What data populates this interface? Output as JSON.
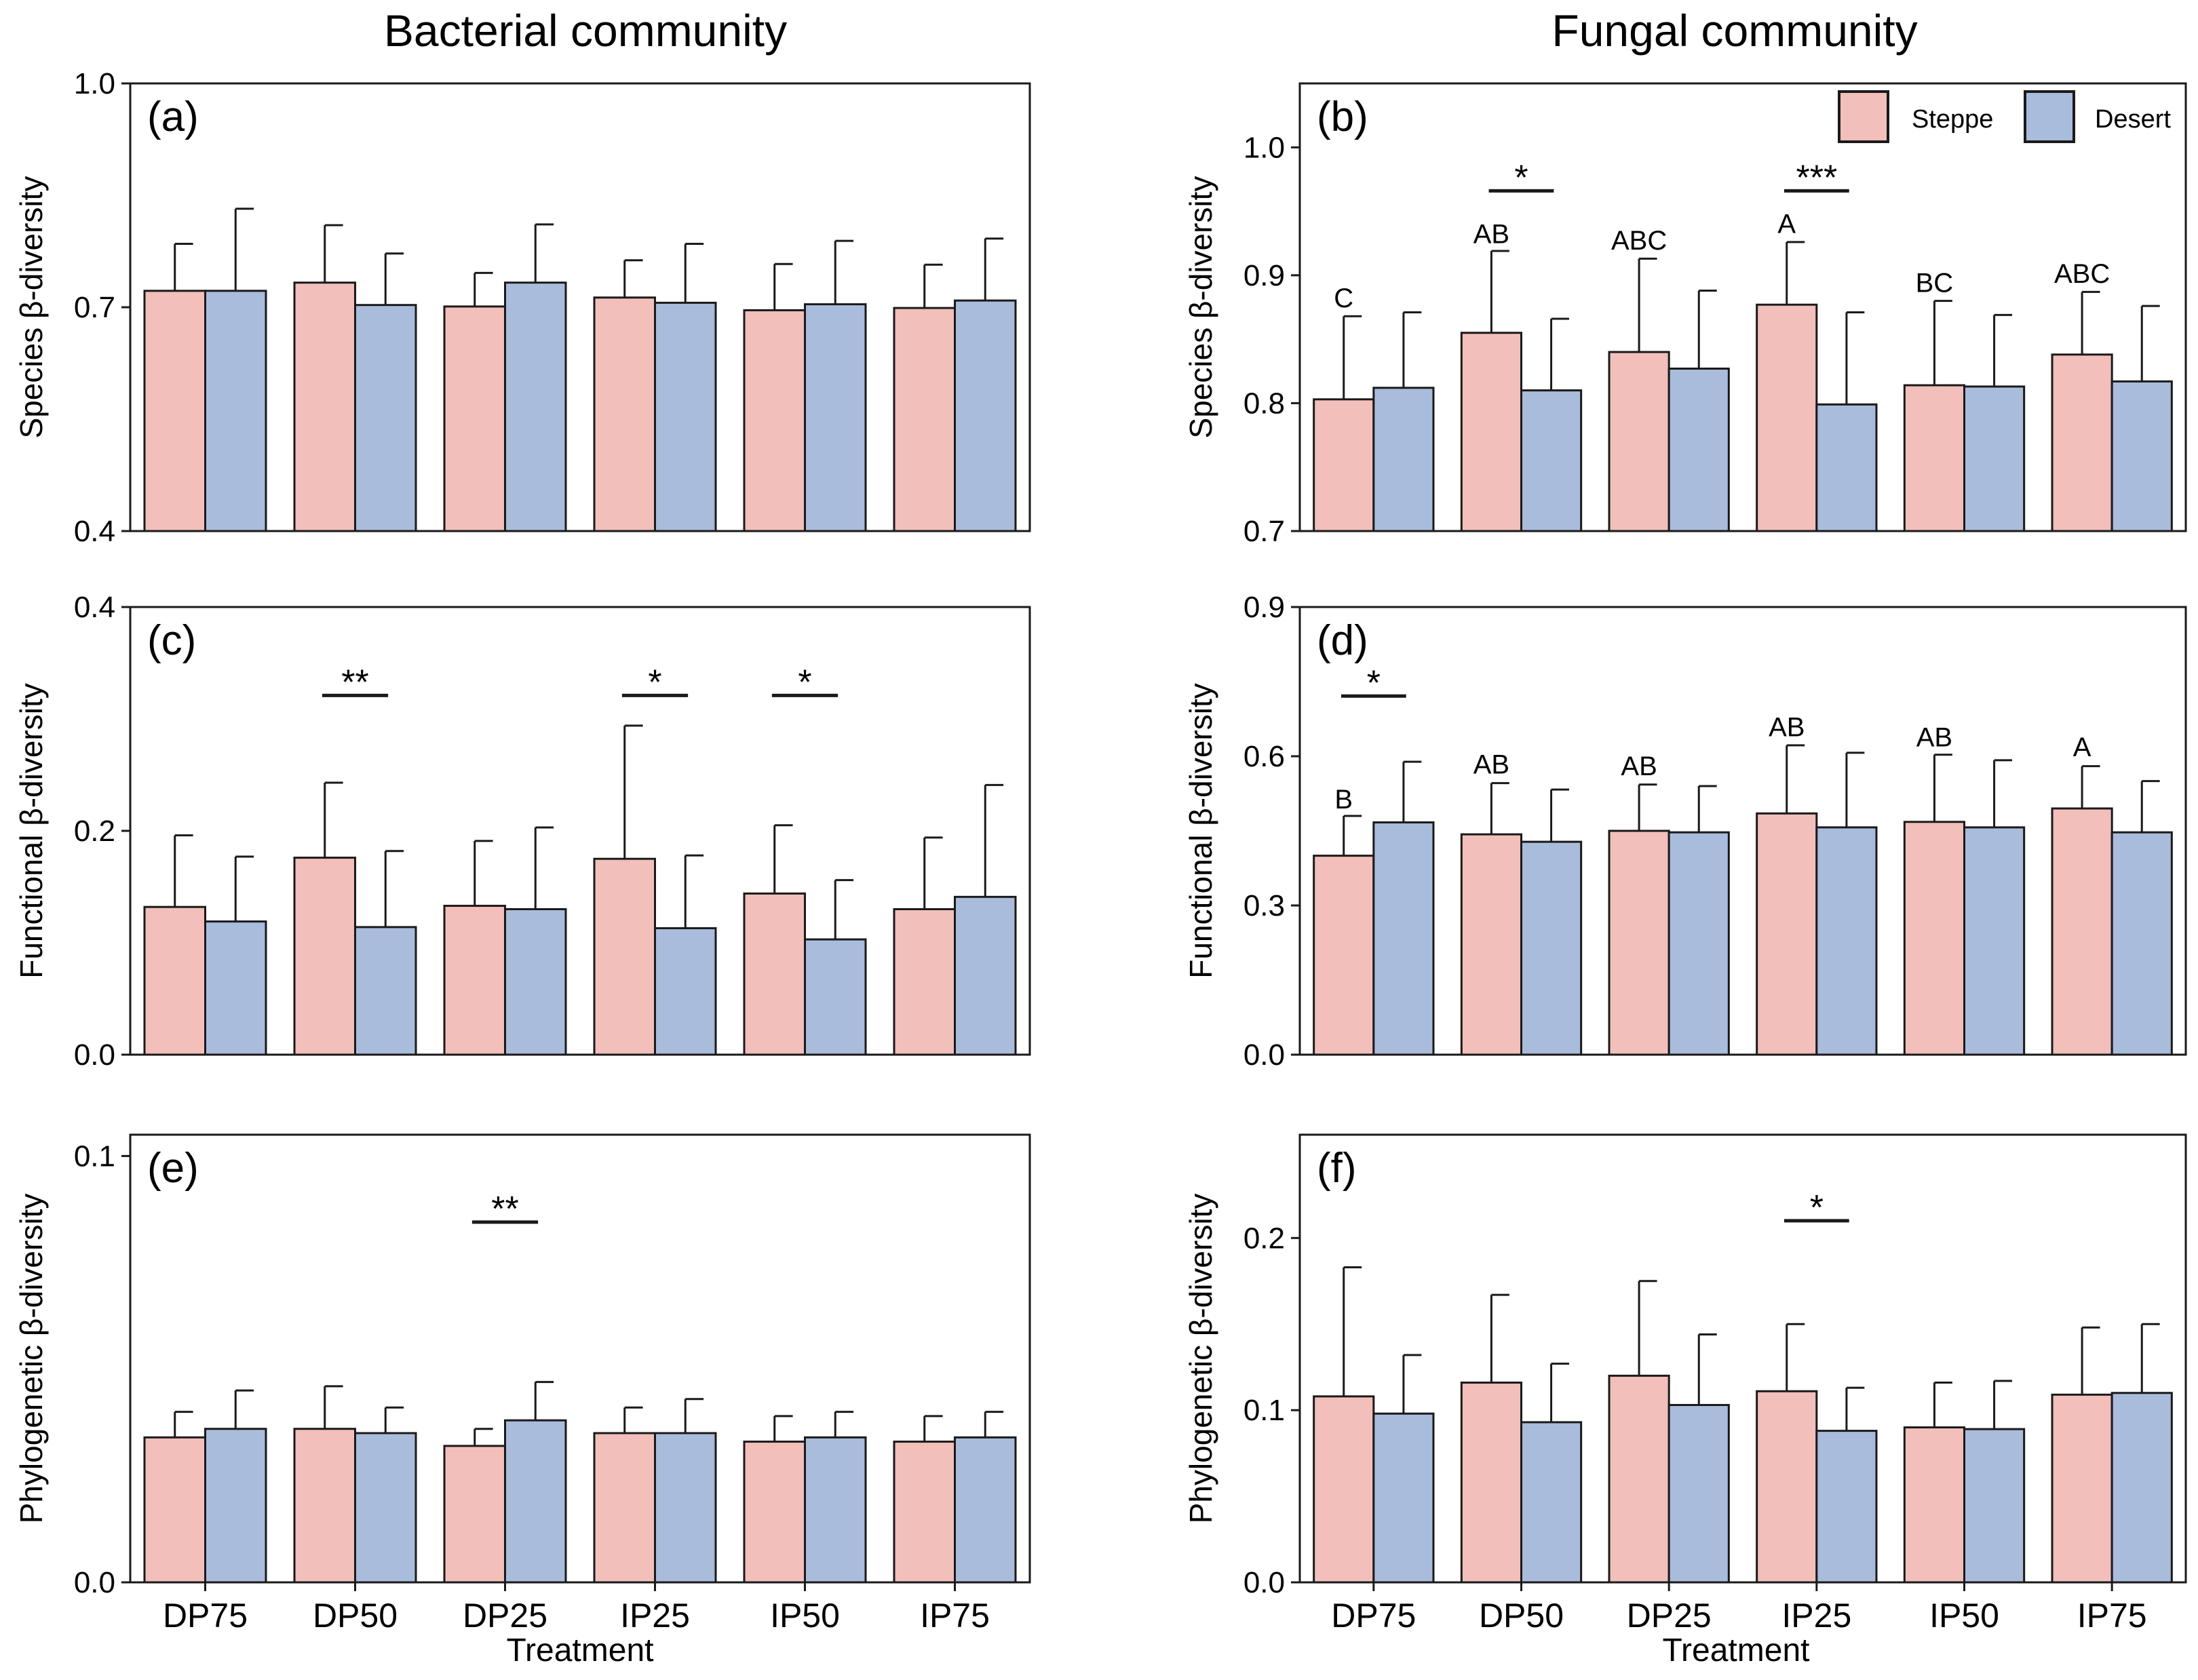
{
  "column_titles": [
    "Bacterial community",
    "Fungal community"
  ],
  "x_axis_title": "Treatment",
  "legend": {
    "entries": [
      {
        "name": "Steppe",
        "color": "#F2BFBB"
      },
      {
        "name": "Desert",
        "color": "#AABCDC"
      }
    ]
  },
  "chart_data": [
    {
      "id": "a",
      "panel_label": "(a)",
      "type": "bar",
      "community": "Bacterial",
      "ylabel": "Species β-diversity",
      "ylim": [
        0.4,
        1.0
      ],
      "yticks": [
        0.4,
        0.7,
        1.0
      ],
      "ytick_labels": [
        "0.4",
        "0.7",
        "1.0"
      ],
      "categories": [
        "DP75",
        "DP50",
        "DP25",
        "IP25",
        "IP50",
        "IP75"
      ],
      "show_xticks": false,
      "series": [
        {
          "name": "Steppe",
          "values": [
            0.722,
            0.733,
            0.701,
            0.713,
            0.696,
            0.699
          ],
          "error": [
            0.063,
            0.077,
            0.045,
            0.05,
            0.062,
            0.058
          ]
        },
        {
          "name": "Desert",
          "values": [
            0.722,
            0.703,
            0.733,
            0.706,
            0.704,
            0.709
          ],
          "error": [
            0.11,
            0.069,
            0.078,
            0.079,
            0.085,
            0.083
          ]
        }
      ],
      "significance": [],
      "letters": []
    },
    {
      "id": "b",
      "panel_label": "(b)",
      "type": "bar",
      "community": "Fungal",
      "ylabel": "Species β-diversity",
      "ylim": [
        0.7,
        1.05
      ],
      "yticks": [
        0.7,
        0.8,
        0.9,
        1.0
      ],
      "ytick_labels": [
        "0.7",
        "0.8",
        "0.9",
        "1.0"
      ],
      "categories": [
        "DP75",
        "DP50",
        "DP25",
        "IP25",
        "IP50",
        "IP75"
      ],
      "show_xticks": false,
      "show_legend": true,
      "series": [
        {
          "name": "Steppe",
          "values": [
            0.803,
            0.855,
            0.84,
            0.877,
            0.814,
            0.838
          ],
          "error": [
            0.065,
            0.064,
            0.073,
            0.049,
            0.066,
            0.049
          ]
        },
        {
          "name": "Desert",
          "values": [
            0.812,
            0.81,
            0.827,
            0.799,
            0.813,
            0.817
          ],
          "error": [
            0.059,
            0.056,
            0.061,
            0.072,
            0.056,
            0.059
          ]
        }
      ],
      "significance": [
        {
          "category_index": 1,
          "label": "*",
          "y": 0.966
        },
        {
          "category_index": 3,
          "label": "***",
          "y": 0.966
        }
      ],
      "letters": [
        {
          "category_index": 0,
          "label": "C",
          "y": 0.875
        },
        {
          "category_index": 1,
          "label": "AB",
          "y": 0.925
        },
        {
          "category_index": 2,
          "label": "ABC",
          "y": 0.92
        },
        {
          "category_index": 3,
          "label": "A",
          "y": 0.933
        },
        {
          "category_index": 4,
          "label": "BC",
          "y": 0.887
        },
        {
          "category_index": 5,
          "label": "ABC",
          "y": 0.894
        }
      ]
    },
    {
      "id": "c",
      "panel_label": "(c)",
      "type": "bar",
      "community": "Bacterial",
      "ylabel": "Functional β-diversity",
      "ylim": [
        0.0,
        0.4
      ],
      "yticks": [
        0.0,
        0.2,
        0.4
      ],
      "ytick_labels": [
        "0.0",
        "0.2",
        "0.4"
      ],
      "categories": [
        "DP75",
        "DP50",
        "DP25",
        "IP25",
        "IP50",
        "IP75"
      ],
      "show_xticks": false,
      "series": [
        {
          "name": "Steppe",
          "values": [
            0.132,
            0.176,
            0.133,
            0.175,
            0.144,
            0.13
          ],
          "error": [
            0.064,
            0.067,
            0.058,
            0.119,
            0.061,
            0.064
          ]
        },
        {
          "name": "Desert",
          "values": [
            0.119,
            0.114,
            0.13,
            0.113,
            0.103,
            0.141
          ],
          "error": [
            0.058,
            0.068,
            0.073,
            0.065,
            0.053,
            0.1
          ]
        }
      ],
      "significance": [
        {
          "category_index": 1,
          "label": "**",
          "y": 0.321
        },
        {
          "category_index": 3,
          "label": "*",
          "y": 0.321
        },
        {
          "category_index": 4,
          "label": "*",
          "y": 0.321
        }
      ],
      "letters": []
    },
    {
      "id": "d",
      "panel_label": "(d)",
      "type": "bar",
      "community": "Fungal",
      "ylabel": "Functional β-diversity",
      "ylim": [
        0.0,
        0.9
      ],
      "yticks": [
        0.0,
        0.3,
        0.6,
        0.9
      ],
      "ytick_labels": [
        "0.0",
        "0.3",
        "0.6",
        "0.9"
      ],
      "categories": [
        "DP75",
        "DP50",
        "DP25",
        "IP25",
        "IP50",
        "IP75"
      ],
      "show_xticks": false,
      "series": [
        {
          "name": "Steppe",
          "values": [
            0.4,
            0.443,
            0.45,
            0.485,
            0.468,
            0.495
          ],
          "error": [
            0.08,
            0.103,
            0.093,
            0.137,
            0.135,
            0.085
          ]
        },
        {
          "name": "Desert",
          "values": [
            0.467,
            0.428,
            0.447,
            0.457,
            0.457,
            0.447
          ],
          "error": [
            0.122,
            0.105,
            0.093,
            0.15,
            0.135,
            0.103
          ]
        }
      ],
      "significance": [
        {
          "category_index": 0,
          "label": "*",
          "y": 0.721
        }
      ],
      "letters": [
        {
          "category_index": 0,
          "label": "B",
          "y": 0.495
        },
        {
          "category_index": 1,
          "label": "AB",
          "y": 0.565
        },
        {
          "category_index": 2,
          "label": "AB",
          "y": 0.562
        },
        {
          "category_index": 3,
          "label": "AB",
          "y": 0.64
        },
        {
          "category_index": 4,
          "label": "AB",
          "y": 0.62
        },
        {
          "category_index": 5,
          "label": "A",
          "y": 0.6
        }
      ]
    },
    {
      "id": "e",
      "panel_label": "(e)",
      "type": "bar",
      "community": "Bacterial",
      "ylabel": "Phylogenetic β-diversity",
      "ylim": [
        0.0,
        0.105
      ],
      "yticks": [
        0.0,
        0.1
      ],
      "ytick_labels": [
        "0.0",
        "0.1"
      ],
      "categories": [
        "DP75",
        "DP50",
        "DP25",
        "IP25",
        "IP50",
        "IP75"
      ],
      "show_xticks": true,
      "series": [
        {
          "name": "Steppe",
          "values": [
            0.034,
            0.036,
            0.032,
            0.035,
            0.033,
            0.033
          ],
          "error": [
            0.006,
            0.01,
            0.004,
            0.006,
            0.006,
            0.006
          ]
        },
        {
          "name": "Desert",
          "values": [
            0.036,
            0.035,
            0.038,
            0.035,
            0.034,
            0.034
          ],
          "error": [
            0.009,
            0.006,
            0.009,
            0.008,
            0.006,
            0.006
          ]
        }
      ],
      "significance": [
        {
          "category_index": 2,
          "label": "**",
          "y": 0.0845
        }
      ],
      "letters": []
    },
    {
      "id": "f",
      "panel_label": "(f)",
      "type": "bar",
      "community": "Fungal",
      "ylabel": "Phylogenetic β-diversity",
      "ylim": [
        0.0,
        0.26
      ],
      "yticks": [
        0.0,
        0.1,
        0.2
      ],
      "ytick_labels": [
        "0.0",
        "0.1",
        "0.2"
      ],
      "categories": [
        "DP75",
        "DP50",
        "DP25",
        "IP25",
        "IP50",
        "IP75"
      ],
      "show_xticks": true,
      "series": [
        {
          "name": "Steppe",
          "values": [
            0.108,
            0.116,
            0.12,
            0.111,
            0.09,
            0.109
          ],
          "error": [
            0.075,
            0.051,
            0.055,
            0.039,
            0.026,
            0.039
          ]
        },
        {
          "name": "Desert",
          "values": [
            0.098,
            0.093,
            0.103,
            0.088,
            0.089,
            0.11
          ],
          "error": [
            0.034,
            0.034,
            0.041,
            0.025,
            0.028,
            0.04
          ]
        }
      ],
      "significance": [
        {
          "category_index": 3,
          "label": "*",
          "y": 0.21
        }
      ],
      "letters": []
    }
  ]
}
